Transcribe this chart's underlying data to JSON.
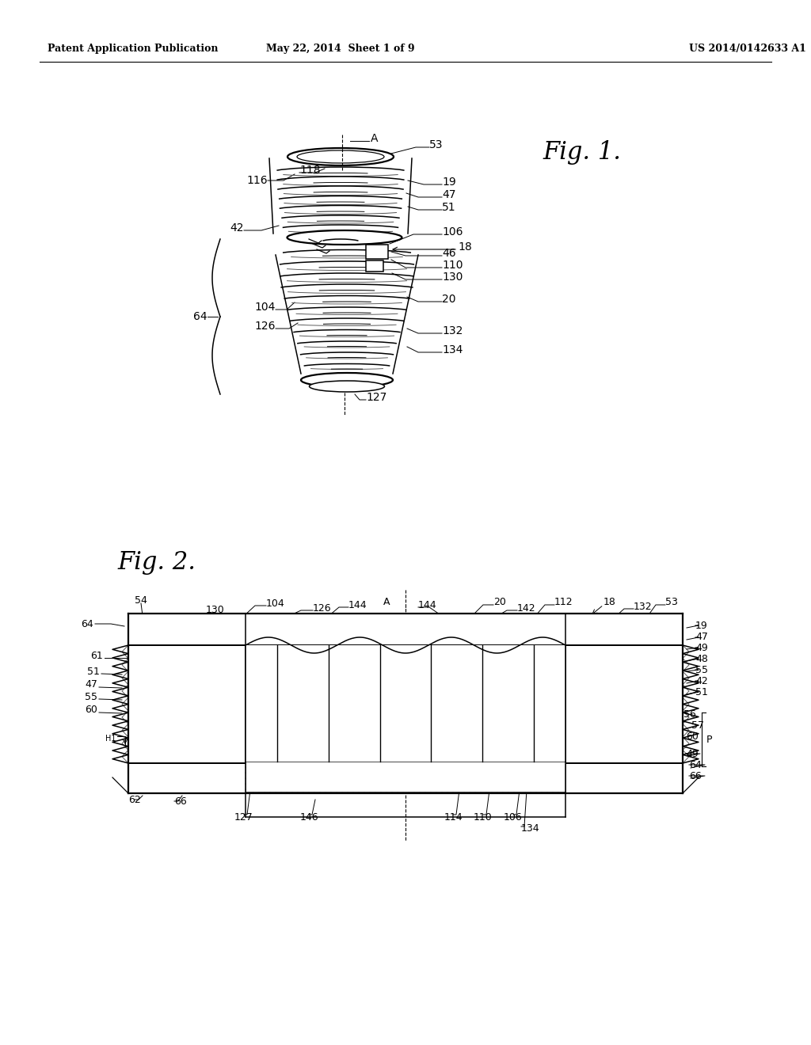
{
  "bg_color": "#ffffff",
  "header_left": "Patent Application Publication",
  "header_center": "May 22, 2014  Sheet 1 of 9",
  "header_right": "US 2014/0142633 A1",
  "fig1_title": "Fig. 1.",
  "fig2_title": "Fig. 2.",
  "line_color": "#000000",
  "label_fontsize": 10,
  "header_fontsize": 9,
  "fig_title_fontsize": 22
}
